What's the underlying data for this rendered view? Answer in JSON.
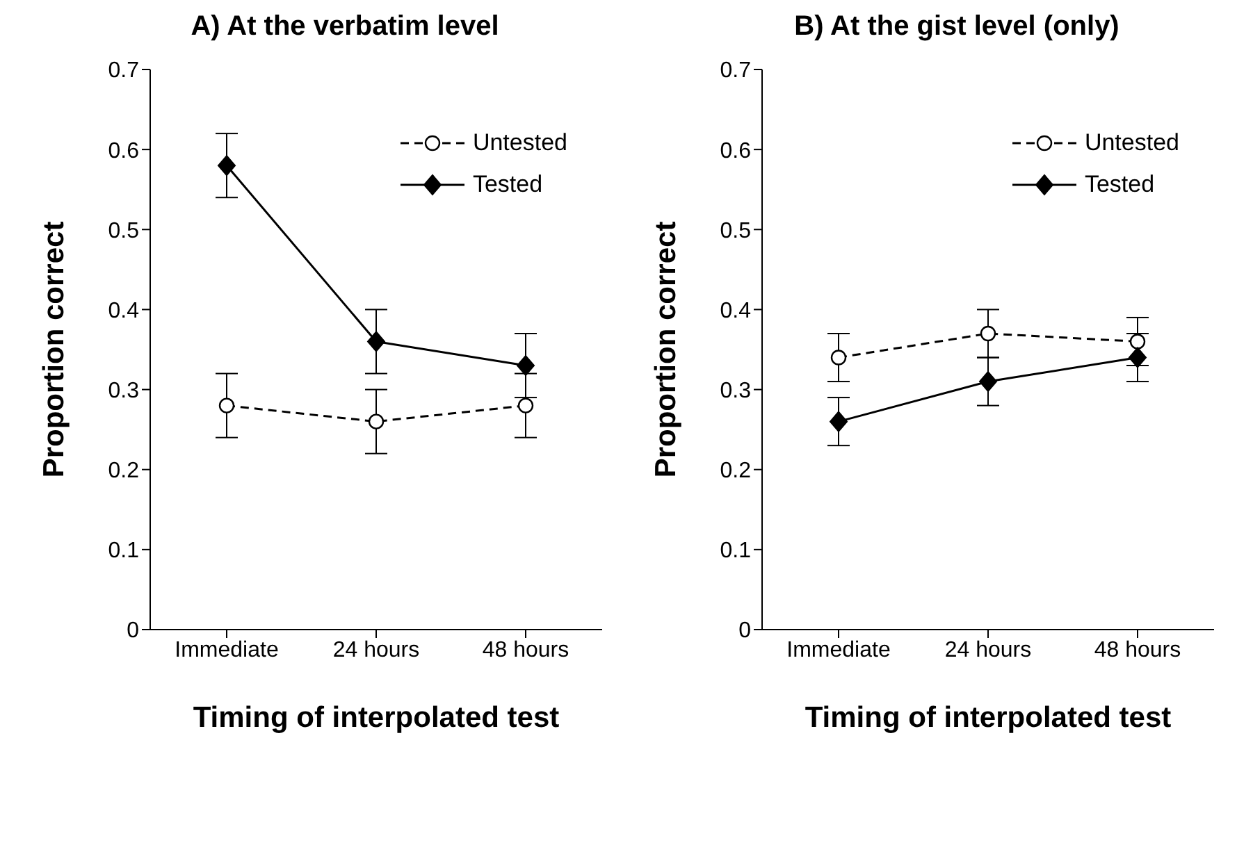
{
  "chart_data": [
    {
      "type": "line",
      "title": "A) At the verbatim level",
      "xlabel": "Timing of interpolated test",
      "ylabel": "Proportion correct",
      "categories": [
        "Immediate",
        "24 hours",
        "48 hours"
      ],
      "ylim": [
        0,
        0.7
      ],
      "yticks": [
        0,
        0.1,
        0.2,
        0.3,
        0.4,
        0.5,
        0.6,
        0.7
      ],
      "grid": false,
      "legend": "top right",
      "series": [
        {
          "name": "Untested",
          "color": "#000000",
          "values": [
            0.28,
            0.26,
            0.28
          ],
          "errors": [
            0.04,
            0.04,
            0.04
          ],
          "marker": "circle",
          "line_style": "dashed"
        },
        {
          "name": "Tested",
          "color": "#000000",
          "values": [
            0.58,
            0.36,
            0.33
          ],
          "errors": [
            0.04,
            0.04,
            0.04
          ],
          "marker": "diamond",
          "line_style": "solid"
        }
      ]
    },
    {
      "type": "line",
      "title": "B) At the gist level (only)",
      "xlabel": "Timing of interpolated test",
      "ylabel": "Proportion correct",
      "categories": [
        "Immediate",
        "24 hours",
        "48 hours"
      ],
      "ylim": [
        0,
        0.7
      ],
      "yticks": [
        0,
        0.1,
        0.2,
        0.3,
        0.4,
        0.5,
        0.6,
        0.7
      ],
      "grid": false,
      "legend": "top right",
      "series": [
        {
          "name": "Untested",
          "color": "#000000",
          "values": [
            0.34,
            0.37,
            0.36
          ],
          "errors": [
            0.03,
            0.03,
            0.03
          ],
          "marker": "circle",
          "line_style": "dashed"
        },
        {
          "name": "Tested",
          "color": "#000000",
          "values": [
            0.26,
            0.31,
            0.34
          ],
          "errors": [
            0.03,
            0.03,
            0.03
          ],
          "marker": "diamond",
          "line_style": "solid"
        }
      ]
    }
  ]
}
